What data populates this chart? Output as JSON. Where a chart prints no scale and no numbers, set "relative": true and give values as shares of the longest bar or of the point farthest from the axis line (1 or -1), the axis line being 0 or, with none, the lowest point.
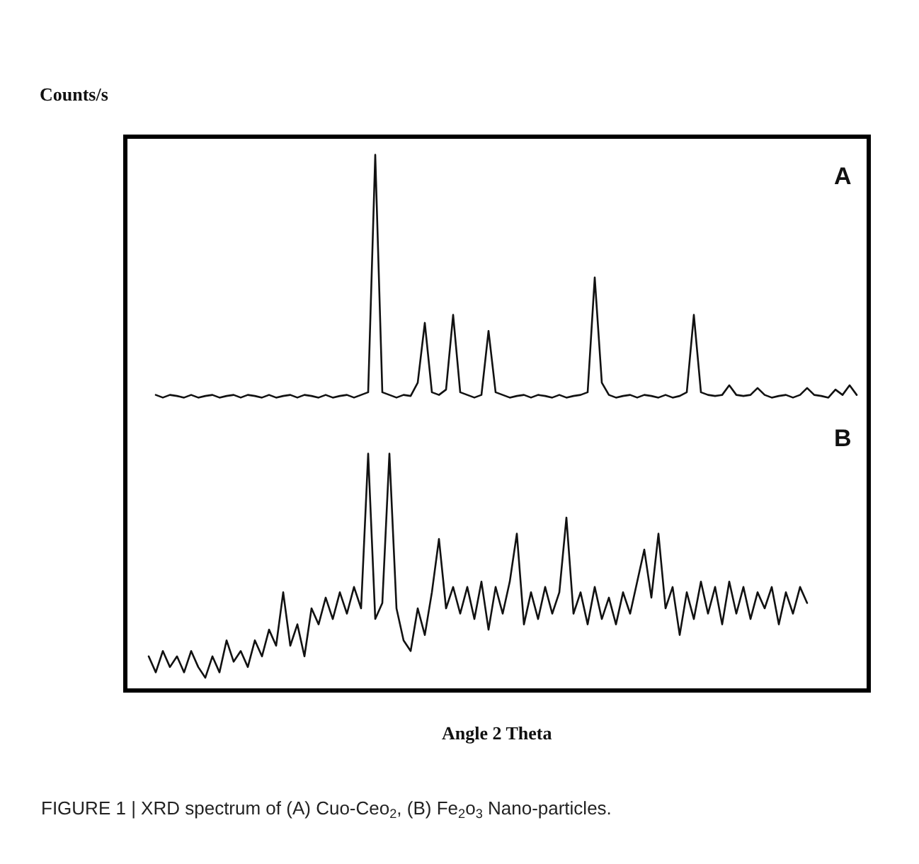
{
  "chart_data": {
    "type": "line",
    "relative": true,
    "ylabel": "Counts/s",
    "xlabel": "Angle 2 Theta",
    "legend": false,
    "marker": "none",
    "line_style": "solid",
    "categories": [
      null,
      null,
      null,
      null,
      null,
      null,
      null,
      null,
      null,
      null,
      null,
      null,
      null,
      null,
      null,
      null,
      null,
      null,
      null,
      null,
      null,
      null,
      null,
      null,
      null,
      null,
      null,
      null,
      null,
      null,
      null,
      null,
      null,
      null,
      null,
      null,
      null,
      null,
      null,
      null,
      null,
      null,
      null,
      null,
      null,
      null,
      null,
      null,
      null,
      null,
      null,
      null,
      null,
      null,
      null,
      null,
      null,
      null,
      null,
      null,
      null,
      null,
      null,
      null,
      null,
      null,
      null,
      null,
      null,
      null,
      null,
      null,
      null,
      null,
      null,
      null,
      null,
      null,
      null,
      null,
      null,
      null,
      null,
      null,
      null,
      null,
      null,
      null,
      null,
      null,
      null,
      null,
      null,
      null,
      null,
      null,
      null,
      null,
      null,
      null,
      null,
      null,
      null
    ],
    "series": [
      {
        "name": "A",
        "color": "#111111",
        "values": [
          null,
          null,
          0.55,
          0.545,
          0.55,
          0.548,
          0.545,
          0.55,
          0.545,
          0.548,
          0.55,
          0.545,
          0.548,
          0.55,
          0.545,
          0.55,
          0.548,
          0.545,
          0.55,
          0.545,
          0.548,
          0.55,
          0.545,
          0.55,
          0.548,
          0.545,
          0.55,
          0.545,
          0.548,
          0.55,
          0.545,
          0.55,
          0.555,
          1.0,
          0.555,
          0.55,
          0.545,
          0.55,
          0.548,
          0.573,
          0.685,
          0.555,
          0.55,
          0.56,
          0.7,
          0.555,
          0.55,
          0.545,
          0.55,
          0.67,
          0.555,
          0.55,
          0.545,
          0.548,
          0.55,
          0.545,
          0.55,
          0.548,
          0.545,
          0.55,
          0.545,
          0.548,
          0.55,
          0.555,
          0.77,
          0.573,
          0.55,
          0.545,
          0.548,
          0.55,
          0.545,
          0.55,
          0.548,
          0.545,
          0.55,
          0.545,
          0.548,
          0.555,
          0.7,
          0.555,
          0.55,
          0.548,
          0.55,
          0.568,
          0.55,
          0.548,
          0.55,
          0.563,
          0.55,
          0.545,
          0.548,
          0.55,
          0.545,
          0.55,
          0.563,
          0.55,
          0.548,
          0.545,
          0.56,
          0.55,
          0.568,
          0.55,
          null
        ]
      },
      {
        "name": "B",
        "color": "#111111",
        "values": [
          null,
          0.06,
          0.03,
          0.07,
          0.04,
          0.06,
          0.03,
          0.07,
          0.04,
          0.02,
          0.06,
          0.03,
          0.09,
          0.05,
          0.07,
          0.04,
          0.09,
          0.06,
          0.11,
          0.08,
          0.18,
          0.08,
          0.12,
          0.06,
          0.15,
          0.12,
          0.17,
          0.13,
          0.18,
          0.14,
          0.19,
          0.15,
          0.44,
          0.13,
          0.16,
          0.44,
          0.15,
          0.09,
          0.07,
          0.15,
          0.1,
          0.18,
          0.28,
          0.15,
          0.19,
          0.14,
          0.19,
          0.13,
          0.2,
          0.11,
          0.19,
          0.14,
          0.2,
          0.29,
          0.12,
          0.18,
          0.13,
          0.19,
          0.14,
          0.18,
          0.32,
          0.14,
          0.18,
          0.12,
          0.19,
          0.13,
          0.17,
          0.12,
          0.18,
          0.14,
          0.2,
          0.26,
          0.17,
          0.29,
          0.15,
          0.19,
          0.1,
          0.18,
          0.13,
          0.2,
          0.14,
          0.19,
          0.12,
          0.2,
          0.14,
          0.19,
          0.13,
          0.18,
          0.15,
          0.19,
          0.12,
          0.18,
          0.14,
          0.19,
          0.16,
          null,
          null,
          null,
          null,
          null,
          null,
          null,
          null
        ]
      }
    ],
    "annotations": [
      "FIGURE 1 | XRD spectrum of (A) Cuo-Ceo$_{2}$, (B) Fe$_{2}$o$_{3}$ Nano-particles."
    ]
  }
}
